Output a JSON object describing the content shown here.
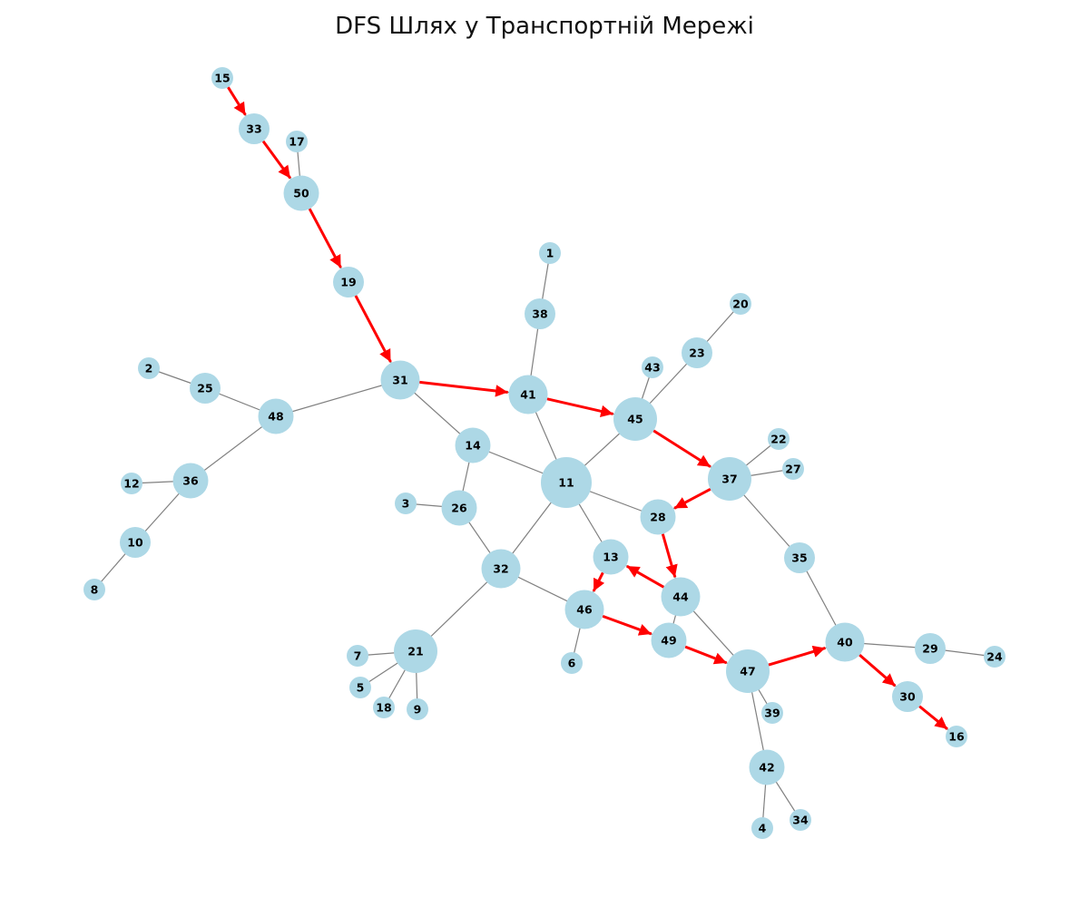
{
  "title": "DFS Шлях у Транспортній Мережі",
  "colors": {
    "node": "#add8e6",
    "edge": "#808080",
    "path": "#ff0000",
    "label": "#000000"
  },
  "nodes": [
    {
      "id": "1"
    },
    {
      "id": "2"
    },
    {
      "id": "3"
    },
    {
      "id": "4"
    },
    {
      "id": "5"
    },
    {
      "id": "6"
    },
    {
      "id": "7"
    },
    {
      "id": "8"
    },
    {
      "id": "9"
    },
    {
      "id": "10"
    },
    {
      "id": "11"
    },
    {
      "id": "12"
    },
    {
      "id": "13"
    },
    {
      "id": "14"
    },
    {
      "id": "15"
    },
    {
      "id": "16"
    },
    {
      "id": "17"
    },
    {
      "id": "18"
    },
    {
      "id": "19"
    },
    {
      "id": "20"
    },
    {
      "id": "21"
    },
    {
      "id": "22"
    },
    {
      "id": "23"
    },
    {
      "id": "24"
    },
    {
      "id": "25"
    },
    {
      "id": "26"
    },
    {
      "id": "27"
    },
    {
      "id": "28"
    },
    {
      "id": "29"
    },
    {
      "id": "30"
    },
    {
      "id": "31"
    },
    {
      "id": "32"
    },
    {
      "id": "33"
    },
    {
      "id": "34"
    },
    {
      "id": "35"
    },
    {
      "id": "36"
    },
    {
      "id": "37"
    },
    {
      "id": "38"
    },
    {
      "id": "39"
    },
    {
      "id": "40"
    },
    {
      "id": "41"
    },
    {
      "id": "42"
    },
    {
      "id": "43"
    },
    {
      "id": "44"
    },
    {
      "id": "45"
    },
    {
      "id": "46"
    },
    {
      "id": "47"
    },
    {
      "id": "48"
    },
    {
      "id": "49"
    },
    {
      "id": "50"
    }
  ],
  "edges": [
    [
      "15",
      "33"
    ],
    [
      "33",
      "50"
    ],
    [
      "17",
      "50"
    ],
    [
      "50",
      "19"
    ],
    [
      "19",
      "31"
    ],
    [
      "31",
      "41"
    ],
    [
      "31",
      "48"
    ],
    [
      "31",
      "14"
    ],
    [
      "1",
      "38"
    ],
    [
      "38",
      "41"
    ],
    [
      "41",
      "45"
    ],
    [
      "41",
      "11"
    ],
    [
      "43",
      "45"
    ],
    [
      "23",
      "45"
    ],
    [
      "20",
      "23"
    ],
    [
      "45",
      "37"
    ],
    [
      "45",
      "11"
    ],
    [
      "2",
      "25"
    ],
    [
      "25",
      "48"
    ],
    [
      "48",
      "36"
    ],
    [
      "12",
      "36"
    ],
    [
      "36",
      "10"
    ],
    [
      "10",
      "8"
    ],
    [
      "14",
      "11"
    ],
    [
      "14",
      "26"
    ],
    [
      "3",
      "26"
    ],
    [
      "26",
      "32"
    ],
    [
      "11",
      "32"
    ],
    [
      "11",
      "28"
    ],
    [
      "11",
      "13"
    ],
    [
      "22",
      "37"
    ],
    [
      "27",
      "37"
    ],
    [
      "37",
      "28"
    ],
    [
      "37",
      "35"
    ],
    [
      "28",
      "44"
    ],
    [
      "44",
      "13"
    ],
    [
      "13",
      "46"
    ],
    [
      "32",
      "46"
    ],
    [
      "32",
      "21"
    ],
    [
      "46",
      "6"
    ],
    [
      "46",
      "49"
    ],
    [
      "44",
      "49"
    ],
    [
      "44",
      "47"
    ],
    [
      "49",
      "47"
    ],
    [
      "35",
      "40"
    ],
    [
      "47",
      "40"
    ],
    [
      "47",
      "39"
    ],
    [
      "47",
      "42"
    ],
    [
      "40",
      "29"
    ],
    [
      "29",
      "24"
    ],
    [
      "40",
      "30"
    ],
    [
      "30",
      "16"
    ],
    [
      "21",
      "7"
    ],
    [
      "21",
      "5"
    ],
    [
      "21",
      "18"
    ],
    [
      "21",
      "9"
    ],
    [
      "42",
      "4"
    ],
    [
      "42",
      "34"
    ]
  ],
  "dfs_path": [
    "15",
    "33",
    "50",
    "19",
    "31",
    "41",
    "45",
    "37",
    "28",
    "44",
    "13",
    "46",
    "49",
    "47",
    "40",
    "30",
    "16"
  ]
}
